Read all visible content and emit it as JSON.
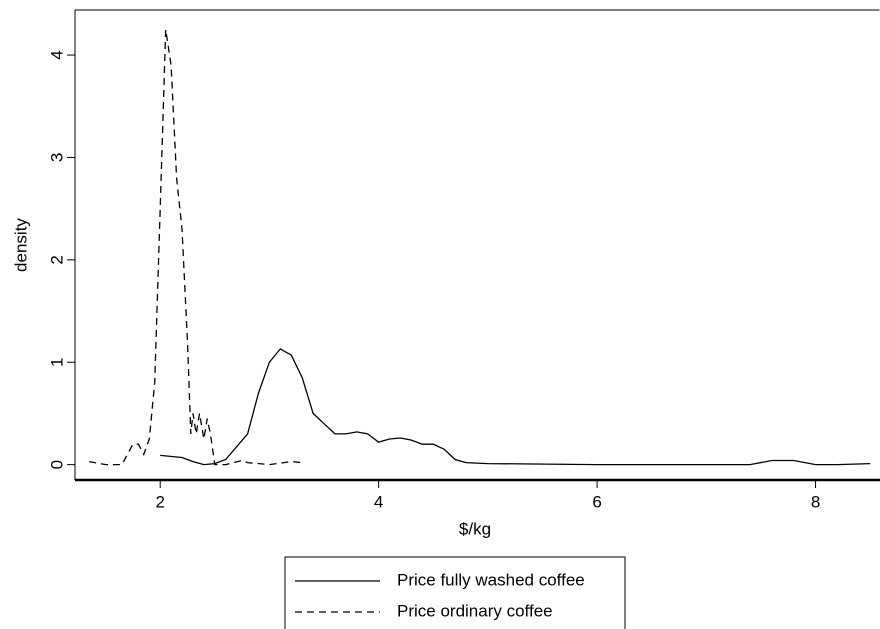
{
  "chart_data": {
    "type": "line",
    "x_label": "$/kg",
    "y_label": "density",
    "xlim": [
      1.22,
      8.59
    ],
    "ylim": [
      -0.15,
      4.44
    ],
    "xticks": [
      2,
      4,
      6,
      8
    ],
    "yticks": [
      0,
      1,
      2,
      3,
      4
    ],
    "grid": false,
    "legend": "bottom",
    "series": [
      {
        "name": "Price fully washed coffee",
        "color": "#000000",
        "dash": "solid",
        "x": [
          2.0,
          2.2,
          2.3,
          2.4,
          2.5,
          2.6,
          2.8,
          2.9,
          3.0,
          3.1,
          3.2,
          3.3,
          3.4,
          3.5,
          3.6,
          3.7,
          3.8,
          3.9,
          4.0,
          4.1,
          4.2,
          4.3,
          4.4,
          4.5,
          4.6,
          4.7,
          4.8,
          5.0,
          6.0,
          7.0,
          7.4,
          7.6,
          7.8,
          8.0,
          8.2,
          8.5
        ],
        "values": [
          0.09,
          0.07,
          0.03,
          0.0,
          0.01,
          0.05,
          0.3,
          0.7,
          1.0,
          1.13,
          1.07,
          0.85,
          0.5,
          0.4,
          0.3,
          0.3,
          0.32,
          0.3,
          0.22,
          0.25,
          0.26,
          0.24,
          0.2,
          0.2,
          0.15,
          0.05,
          0.02,
          0.01,
          0.0,
          0.0,
          0.0,
          0.04,
          0.04,
          0.0,
          0.0,
          0.01
        ]
      },
      {
        "name": "Price ordinary coffee",
        "color": "#000000",
        "dash": "dashed",
        "x": [
          1.35,
          1.5,
          1.65,
          1.7,
          1.75,
          1.8,
          1.85,
          1.9,
          1.95,
          2.0,
          2.05,
          2.1,
          2.15,
          2.2,
          2.25,
          2.28,
          2.3,
          2.33,
          2.36,
          2.4,
          2.43,
          2.46,
          2.5,
          2.6,
          2.75,
          2.8,
          3.0,
          3.2,
          3.3
        ],
        "values": [
          0.03,
          0.0,
          0.0,
          0.1,
          0.2,
          0.2,
          0.1,
          0.25,
          0.8,
          2.5,
          4.25,
          3.9,
          2.8,
          2.3,
          1.2,
          0.3,
          0.5,
          0.3,
          0.5,
          0.25,
          0.45,
          0.3,
          0.0,
          0.0,
          0.04,
          0.02,
          0.0,
          0.03,
          0.02
        ]
      }
    ]
  }
}
